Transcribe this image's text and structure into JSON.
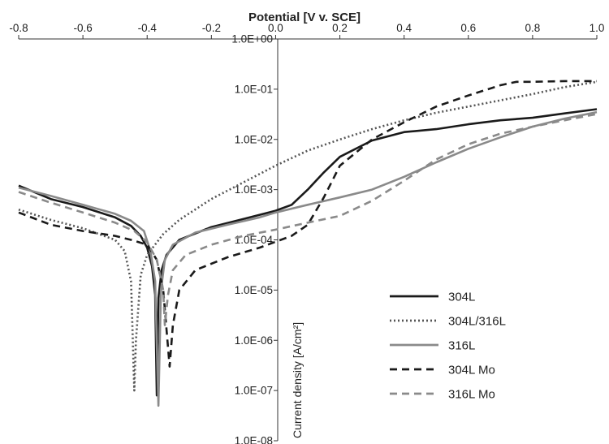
{
  "chart_data": {
    "type": "line",
    "title": "Potential [V v. SCE]",
    "xlabel": "Potential [V v. SCE]",
    "ylabel": "Current density [A/cm²]",
    "x_axis_position": "top",
    "y_scale": "log",
    "xlim": [
      -0.8,
      1.0
    ],
    "ylim": [
      1e-08,
      1.0
    ],
    "x_ticks": [
      "-0.8",
      "-0.6",
      "-0.4",
      "-0.2",
      "0.0",
      "0.2",
      "0.4",
      "0.6",
      "0.8",
      "1.0"
    ],
    "y_ticks": [
      "1.0E+00",
      "1.0E-01",
      "1.0E-02",
      "1.0E-03",
      "1.0E-04",
      "1.0E-05",
      "1.0E-06",
      "1.0E-07",
      "1.0E-08"
    ],
    "grid": false,
    "legend_position": "bottom-right",
    "series": [
      {
        "name": "304L",
        "color": "#1a1a1a",
        "dash": "solid",
        "points": [
          [
            -0.8,
            0.0012
          ],
          [
            -0.7,
            0.00065
          ],
          [
            -0.6,
            0.00045
          ],
          [
            -0.5,
            0.00028
          ],
          [
            -0.45,
            0.00019
          ],
          [
            -0.42,
            0.00012
          ],
          [
            -0.4,
            7e-05
          ],
          [
            -0.385,
            3e-05
          ],
          [
            -0.375,
            8e-06
          ],
          [
            -0.37,
            8e-08
          ],
          [
            -0.365,
            7e-06
          ],
          [
            -0.355,
            2.5e-05
          ],
          [
            -0.34,
            5e-05
          ],
          [
            -0.3,
            0.0001
          ],
          [
            -0.2,
            0.00018
          ],
          [
            -0.1,
            0.00026
          ],
          [
            0.0,
            0.00038
          ],
          [
            0.05,
            0.0005
          ],
          [
            0.1,
            0.001
          ],
          [
            0.15,
            0.0022
          ],
          [
            0.2,
            0.0045
          ],
          [
            0.3,
            0.0095
          ],
          [
            0.4,
            0.014
          ],
          [
            0.5,
            0.016
          ],
          [
            0.6,
            0.02
          ],
          [
            0.7,
            0.024
          ],
          [
            0.8,
            0.027
          ],
          [
            0.9,
            0.033
          ],
          [
            1.0,
            0.04
          ]
        ]
      },
      {
        "name": "304L/316L",
        "color": "#555555",
        "dash": "dotted",
        "points": [
          [
            -0.8,
            0.0004
          ],
          [
            -0.7,
            0.00025
          ],
          [
            -0.6,
            0.00017
          ],
          [
            -0.5,
            0.0001
          ],
          [
            -0.47,
            6e-05
          ],
          [
            -0.45,
            1.5e-05
          ],
          [
            -0.44,
            1e-07
          ],
          [
            -0.435,
            1e-06
          ],
          [
            -0.42,
            2e-05
          ],
          [
            -0.4,
            5e-05
          ],
          [
            -0.35,
            0.00013
          ],
          [
            -0.3,
            0.00025
          ],
          [
            -0.2,
            0.00065
          ],
          [
            -0.1,
            0.0014
          ],
          [
            0.0,
            0.003
          ],
          [
            0.1,
            0.006
          ],
          [
            0.2,
            0.01
          ],
          [
            0.3,
            0.016
          ],
          [
            0.4,
            0.024
          ],
          [
            0.5,
            0.034
          ],
          [
            0.6,
            0.045
          ],
          [
            0.7,
            0.06
          ],
          [
            0.8,
            0.08
          ],
          [
            0.9,
            0.11
          ],
          [
            1.0,
            0.14
          ]
        ]
      },
      {
        "name": "316L",
        "color": "#8a8a8a",
        "dash": "solid",
        "points": [
          [
            -0.8,
            0.0011
          ],
          [
            -0.7,
            0.00075
          ],
          [
            -0.6,
            0.0005
          ],
          [
            -0.5,
            0.00033
          ],
          [
            -0.45,
            0.00024
          ],
          [
            -0.41,
            0.00015
          ],
          [
            -0.39,
            6e-05
          ],
          [
            -0.375,
            1.5e-05
          ],
          [
            -0.365,
            5e-08
          ],
          [
            -0.357,
            1e-05
          ],
          [
            -0.345,
            4e-05
          ],
          [
            -0.32,
            8e-05
          ],
          [
            -0.25,
            0.00014
          ],
          [
            -0.15,
            0.0002
          ],
          [
            -0.05,
            0.00028
          ],
          [
            0.0,
            0.00035
          ],
          [
            0.1,
            0.0005
          ],
          [
            0.2,
            0.0007
          ],
          [
            0.3,
            0.001
          ],
          [
            0.4,
            0.0018
          ],
          [
            0.5,
            0.0035
          ],
          [
            0.6,
            0.0065
          ],
          [
            0.7,
            0.011
          ],
          [
            0.8,
            0.018
          ],
          [
            0.9,
            0.026
          ],
          [
            1.0,
            0.035
          ]
        ]
      },
      {
        "name": "304L Mo",
        "color": "#1a1a1a",
        "dash": "dashed",
        "points": [
          [
            -0.8,
            0.00035
          ],
          [
            -0.7,
            0.0002
          ],
          [
            -0.6,
            0.00015
          ],
          [
            -0.5,
            0.00012
          ],
          [
            -0.45,
            0.0001
          ],
          [
            -0.4,
            8e-05
          ],
          [
            -0.37,
            4e-05
          ],
          [
            -0.35,
            1e-05
          ],
          [
            -0.33,
            3e-07
          ],
          [
            -0.32,
            2e-06
          ],
          [
            -0.3,
            1e-05
          ],
          [
            -0.25,
            2.5e-05
          ],
          [
            -0.15,
            4.5e-05
          ],
          [
            -0.05,
            7e-05
          ],
          [
            0.05,
            0.00012
          ],
          [
            0.1,
            0.0002
          ],
          [
            0.15,
            0.0007
          ],
          [
            0.2,
            0.003
          ],
          [
            0.3,
            0.01
          ],
          [
            0.4,
            0.022
          ],
          [
            0.5,
            0.045
          ],
          [
            0.6,
            0.075
          ],
          [
            0.7,
            0.12
          ],
          [
            0.75,
            0.14
          ],
          [
            0.8,
            0.14
          ],
          [
            0.9,
            0.145
          ],
          [
            1.0,
            0.145
          ]
        ]
      },
      {
        "name": "316L Mo",
        "color": "#8a8a8a",
        "dash": "dashed",
        "points": [
          [
            -0.8,
            0.0009
          ],
          [
            -0.7,
            0.00055
          ],
          [
            -0.6,
            0.00035
          ],
          [
            -0.5,
            0.00022
          ],
          [
            -0.44,
            0.00015
          ],
          [
            -0.4,
            9e-05
          ],
          [
            -0.37,
            4e-05
          ],
          [
            -0.35,
            1e-05
          ],
          [
            -0.345,
            2e-06
          ],
          [
            -0.335,
            8e-06
          ],
          [
            -0.32,
            2.5e-05
          ],
          [
            -0.28,
            5e-05
          ],
          [
            -0.2,
            8e-05
          ],
          [
            -0.1,
            0.00012
          ],
          [
            0.0,
            0.00016
          ],
          [
            0.1,
            0.00022
          ],
          [
            0.2,
            0.0003
          ],
          [
            0.3,
            0.0006
          ],
          [
            0.4,
            0.0015
          ],
          [
            0.5,
            0.004
          ],
          [
            0.6,
            0.008
          ],
          [
            0.7,
            0.013
          ],
          [
            0.8,
            0.018
          ],
          [
            0.9,
            0.024
          ],
          [
            1.0,
            0.032
          ]
        ]
      }
    ]
  }
}
